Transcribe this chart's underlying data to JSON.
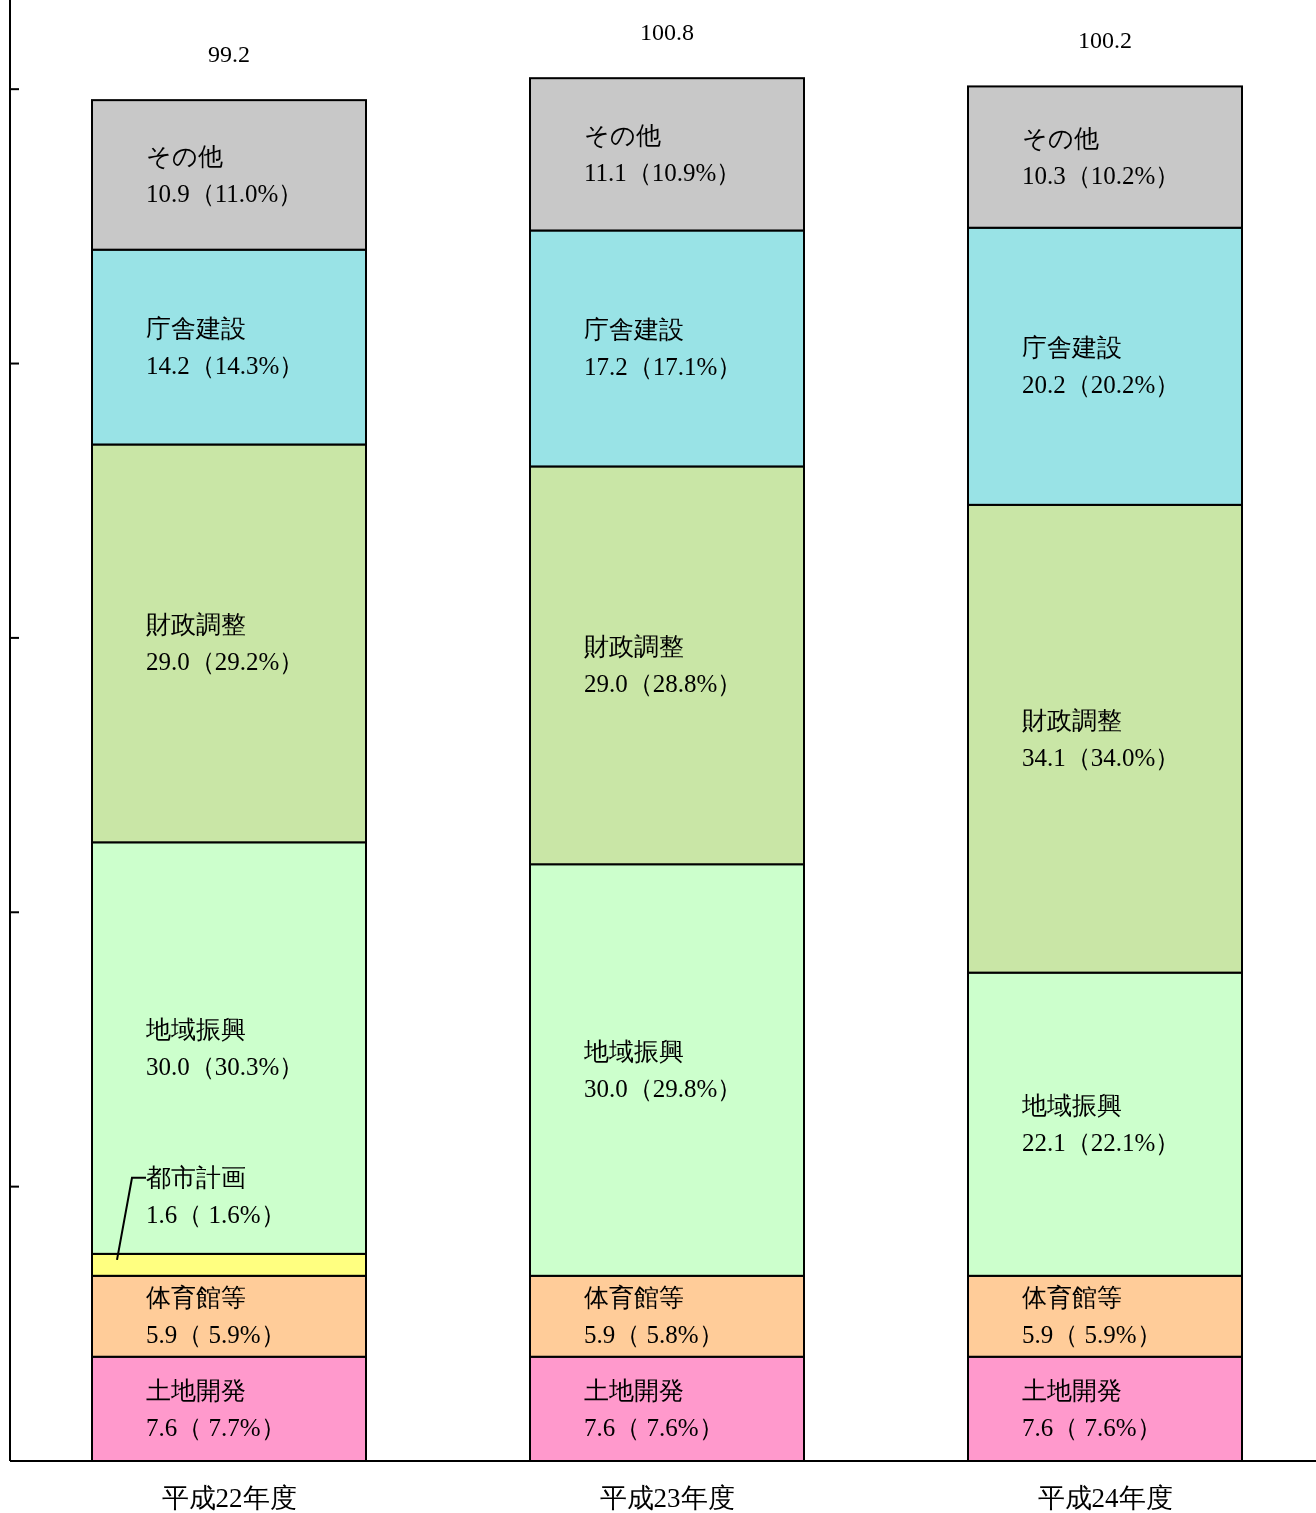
{
  "chart_data": {
    "type": "bar",
    "stacked": true,
    "categories": [
      "平成22年度",
      "平成23年度",
      "平成24年度"
    ],
    "series": [
      {
        "name": "土地開発",
        "color": "#ff99cc",
        "values": [
          7.6,
          7.6,
          7.6
        ],
        "value_labels": [
          " 7.6（ 7.7%）",
          " 7.6（ 7.6%）",
          " 7.6（ 7.6%）"
        ]
      },
      {
        "name": "体育館等",
        "color": "#ffcc99",
        "values": [
          5.9,
          5.9,
          5.9
        ],
        "value_labels": [
          " 5.9（ 5.9%）",
          " 5.9（ 5.8%）",
          " 5.9（ 5.9%）"
        ]
      },
      {
        "name": "都市計画",
        "color": "#ffff80",
        "values": [
          1.6,
          null,
          null
        ],
        "value_labels": [
          " 1.6（ 1.6%）",
          null,
          null
        ]
      },
      {
        "name": "地域振興",
        "color": "#ccffcc",
        "values": [
          30.0,
          30.0,
          22.1
        ],
        "value_labels": [
          "30.0（30.3%）",
          "30.0（29.8%）",
          "22.1（22.1%）"
        ]
      },
      {
        "name": "財政調整",
        "color": "#c9e6a6",
        "values": [
          29.0,
          29.0,
          34.1
        ],
        "value_labels": [
          "29.0（29.2%）",
          "29.0（28.8%）",
          "34.1（34.0%）"
        ]
      },
      {
        "name": "庁舎建設",
        "color": "#99e3e6",
        "values": [
          14.2,
          17.2,
          20.2
        ],
        "value_labels": [
          "14.2（14.3%）",
          "17.2（17.1%）",
          "20.2（20.2%）"
        ]
      },
      {
        "name": "その他",
        "color": "#c8c8c8",
        "values": [
          10.9,
          11.1,
          10.3
        ],
        "value_labels": [
          "10.9（11.0%）",
          "11.1（10.9%）",
          "10.3（10.2%）"
        ]
      }
    ],
    "totals": [
      "99.2",
      "100.8",
      "100.2"
    ],
    "ylim": [
      0,
      106.5
    ],
    "yticks": [
      {
        "value": 0,
        "label": null
      },
      {
        "value": 20,
        "label": null
      },
      {
        "value": 40,
        "label": null
      },
      {
        "value": 60,
        "label": null
      },
      {
        "value": 80,
        "label": null
      },
      {
        "value": 100,
        "label": null
      }
    ],
    "tick_labels": "x"
  }
}
